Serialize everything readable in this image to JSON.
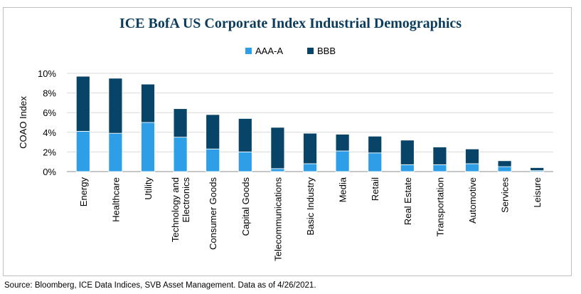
{
  "chart_data": {
    "type": "bar",
    "stacked": true,
    "title": "ICE BofA US Corporate Index Industrial Demographics",
    "ylabel": "COAO Index",
    "xlabel": "",
    "ylim": [
      0,
      10
    ],
    "yticks": [
      "0%",
      "2%",
      "4%",
      "6%",
      "8%",
      "10%"
    ],
    "ytick_values": [
      0,
      2,
      4,
      6,
      8,
      10
    ],
    "grid": true,
    "legend_position": "top-center",
    "categories": [
      "Energy",
      "Healthcare",
      "Utility",
      "Technology and Electronics",
      "Consumer Goods",
      "Capital Goods",
      "Telecommunications",
      "Basic Industry",
      "Media",
      "Retail",
      "Real Estate",
      "Transportation",
      "Automotive",
      "Services",
      "Leisure"
    ],
    "series": [
      {
        "name": "AAA-A",
        "color": "#2e9fe6",
        "values": [
          4.1,
          3.9,
          5.0,
          3.5,
          2.3,
          2.0,
          0.3,
          0.8,
          2.1,
          1.9,
          0.7,
          0.7,
          0.8,
          0.5,
          0.1
        ]
      },
      {
        "name": "BBB",
        "color": "#084467",
        "values": [
          5.6,
          5.6,
          3.9,
          2.9,
          3.5,
          3.4,
          4.2,
          3.1,
          1.7,
          1.7,
          2.5,
          1.8,
          1.5,
          0.6,
          0.3
        ]
      }
    ]
  },
  "source": "Source: Bloomberg, ICE Data Indices, SVB Asset Management. Data as of 4/26/2021."
}
